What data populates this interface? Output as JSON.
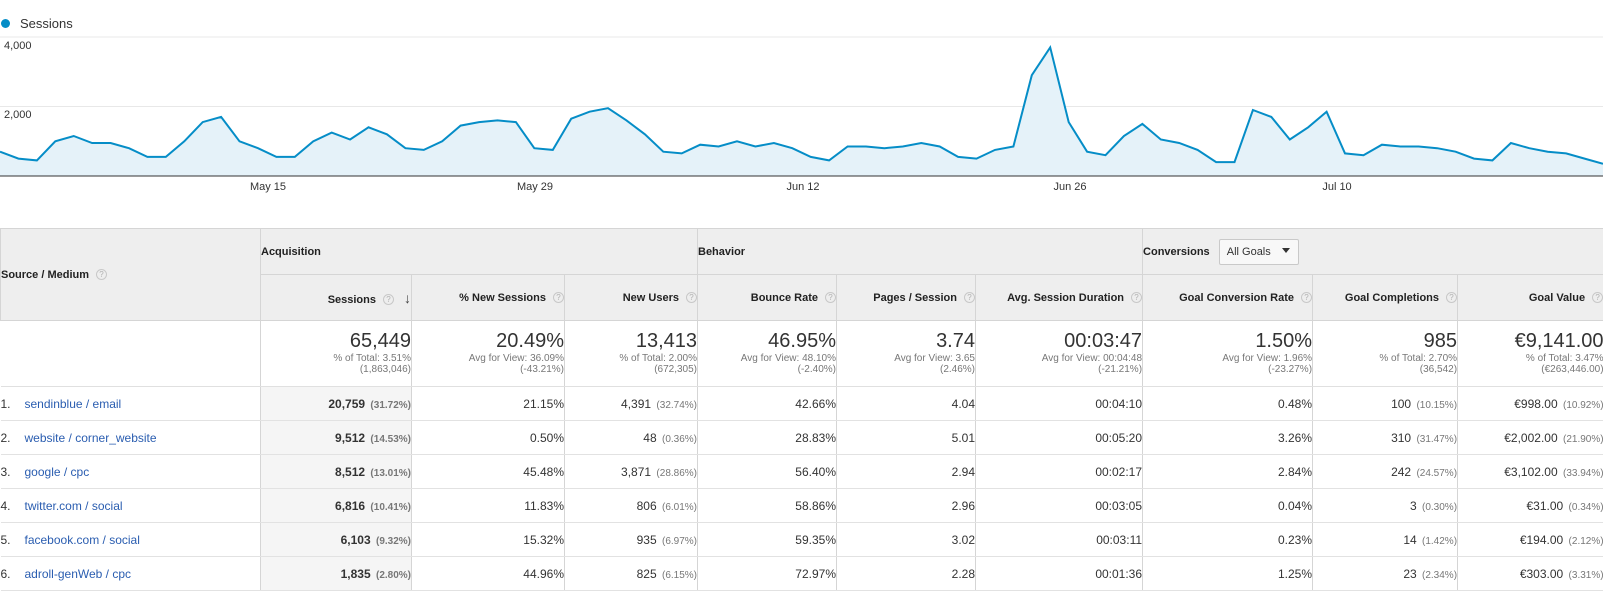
{
  "legend": {
    "label": "Sessions",
    "color": "#058dc7"
  },
  "chart_data": {
    "type": "area",
    "series": [
      {
        "name": "Sessions",
        "values": [
          700,
          500,
          450,
          1000,
          1150,
          950,
          950,
          800,
          550,
          550,
          1000,
          1550,
          1700,
          1000,
          800,
          550,
          550,
          1000,
          1250,
          1050,
          1400,
          1200,
          800,
          750,
          1000,
          1450,
          1550,
          1600,
          1550,
          800,
          750,
          1650,
          1850,
          1950,
          1600,
          1200,
          700,
          650,
          900,
          850,
          1000,
          850,
          950,
          800,
          550,
          450,
          850,
          850,
          800,
          850,
          950,
          850,
          550,
          500,
          750,
          850,
          2900,
          3700,
          1550,
          700,
          600,
          1150,
          1500,
          1050,
          950,
          750,
          400,
          400,
          1900,
          1700,
          1050,
          1400,
          1850,
          650,
          600,
          900,
          850,
          850,
          800,
          700,
          500,
          450,
          950,
          800,
          700,
          650,
          500,
          350
        ]
      }
    ],
    "x_tick_labels": [
      "May 15",
      "May 29",
      "Jun 12",
      "Jun 26",
      "Jul 10"
    ],
    "y_tick_labels": [
      "4,000",
      "2,000"
    ],
    "ylim": [
      0,
      4000
    ],
    "grid": true,
    "legend_position": "top-left"
  },
  "table": {
    "source_header": "Source / Medium",
    "groups": {
      "acquisition": "Acquisition",
      "behavior": "Behavior",
      "conversions": "Conversions",
      "goals_select": "All Goals"
    },
    "columns": [
      "Sessions",
      "% New Sessions",
      "New Users",
      "Bounce Rate",
      "Pages / Session",
      "Avg. Session Duration",
      "Goal Conversion Rate",
      "Goal Completions",
      "Goal Value"
    ],
    "totals": [
      {
        "value": "65,449",
        "line1": "% of Total: 3.51%",
        "line2": "(1,863,046)"
      },
      {
        "value": "20.49%",
        "line1": "Avg for View: 36.09%",
        "line2": "(-43.21%)"
      },
      {
        "value": "13,413",
        "line1": "% of Total: 2.00%",
        "line2": "(672,305)"
      },
      {
        "value": "46.95%",
        "line1": "Avg for View: 48.10%",
        "line2": "(-2.40%)"
      },
      {
        "value": "3.74",
        "line1": "Avg for View: 3.65",
        "line2": "(2.46%)"
      },
      {
        "value": "00:03:47",
        "line1": "Avg for View: 00:04:48",
        "line2": "(-21.21%)"
      },
      {
        "value": "1.50%",
        "line1": "Avg for View: 1.96%",
        "line2": "(-23.27%)"
      },
      {
        "value": "985",
        "line1": "% of Total: 2.70%",
        "line2": "(36,542)"
      },
      {
        "value": "€9,141.00",
        "line1": "% of Total: 3.47%",
        "line2": "(€263,446.00)"
      }
    ],
    "rows": [
      {
        "rank": "1.",
        "source": "sendinblue / email",
        "sessions": "20,759",
        "sessions_pct": "(31.72%)",
        "new_sessions": "21.15%",
        "new_users": "4,391",
        "new_users_pct": "(32.74%)",
        "bounce": "42.66%",
        "pages": "4.04",
        "duration": "00:04:10",
        "conv_rate": "0.48%",
        "completions": "100",
        "completions_pct": "(10.15%)",
        "value": "€998.00",
        "value_pct": "(10.92%)"
      },
      {
        "rank": "2.",
        "source": "website / corner_website",
        "sessions": "9,512",
        "sessions_pct": "(14.53%)",
        "new_sessions": "0.50%",
        "new_users": "48",
        "new_users_pct": "(0.36%)",
        "bounce": "28.83%",
        "pages": "5.01",
        "duration": "00:05:20",
        "conv_rate": "3.26%",
        "completions": "310",
        "completions_pct": "(31.47%)",
        "value": "€2,002.00",
        "value_pct": "(21.90%)"
      },
      {
        "rank": "3.",
        "source": "google / cpc",
        "sessions": "8,512",
        "sessions_pct": "(13.01%)",
        "new_sessions": "45.48%",
        "new_users": "3,871",
        "new_users_pct": "(28.86%)",
        "bounce": "56.40%",
        "pages": "2.94",
        "duration": "00:02:17",
        "conv_rate": "2.84%",
        "completions": "242",
        "completions_pct": "(24.57%)",
        "value": "€3,102.00",
        "value_pct": "(33.94%)"
      },
      {
        "rank": "4.",
        "source": "twitter.com / social",
        "sessions": "6,816",
        "sessions_pct": "(10.41%)",
        "new_sessions": "11.83%",
        "new_users": "806",
        "new_users_pct": "(6.01%)",
        "bounce": "58.86%",
        "pages": "2.96",
        "duration": "00:03:05",
        "conv_rate": "0.04%",
        "completions": "3",
        "completions_pct": "(0.30%)",
        "value": "€31.00",
        "value_pct": "(0.34%)"
      },
      {
        "rank": "5.",
        "source": "facebook.com / social",
        "sessions": "6,103",
        "sessions_pct": "(9.32%)",
        "new_sessions": "15.32%",
        "new_users": "935",
        "new_users_pct": "(6.97%)",
        "bounce": "59.35%",
        "pages": "3.02",
        "duration": "00:03:11",
        "conv_rate": "0.23%",
        "completions": "14",
        "completions_pct": "(1.42%)",
        "value": "€194.00",
        "value_pct": "(2.12%)"
      },
      {
        "rank": "6.",
        "source": "adroll-genWeb / cpc",
        "sessions": "1,835",
        "sessions_pct": "(2.80%)",
        "new_sessions": "44.96%",
        "new_users": "825",
        "new_users_pct": "(6.15%)",
        "bounce": "72.97%",
        "pages": "2.28",
        "duration": "00:01:36",
        "conv_rate": "1.25%",
        "completions": "23",
        "completions_pct": "(2.34%)",
        "value": "€303.00",
        "value_pct": "(3.31%)"
      }
    ]
  }
}
